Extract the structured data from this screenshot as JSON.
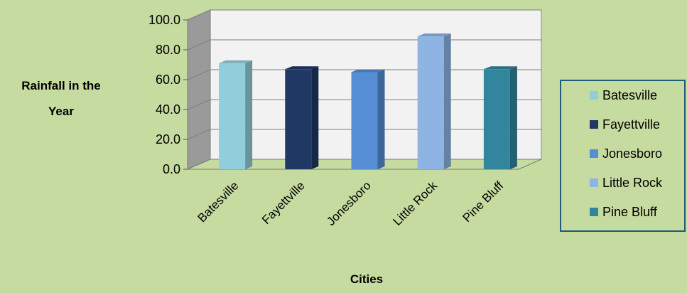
{
  "background": "#c6dba0",
  "chart_data": {
    "type": "bar",
    "title": "",
    "xlabel": "Cities",
    "ylabel_lines": [
      "Rainfall in the",
      "Year"
    ],
    "categories": [
      "Batesville",
      "Fayettville",
      "Jonesboro",
      "Little Rock",
      "Pine Bluff"
    ],
    "values": [
      71,
      67,
      65,
      89,
      67
    ],
    "colors": [
      "#92cddc",
      "#1f3864",
      "#558ed5",
      "#8eb4e3",
      "#31859c"
    ],
    "ylim": [
      0,
      100
    ],
    "yticks": [
      "0.0",
      "20.0",
      "40.0",
      "60.0",
      "80.0",
      "100.0"
    ],
    "grid": true,
    "legend": {
      "position": "right",
      "entries": [
        "Batesville",
        "Fayettville",
        "Jonesboro",
        "Little Rock",
        "Pine Bluff"
      ]
    }
  }
}
